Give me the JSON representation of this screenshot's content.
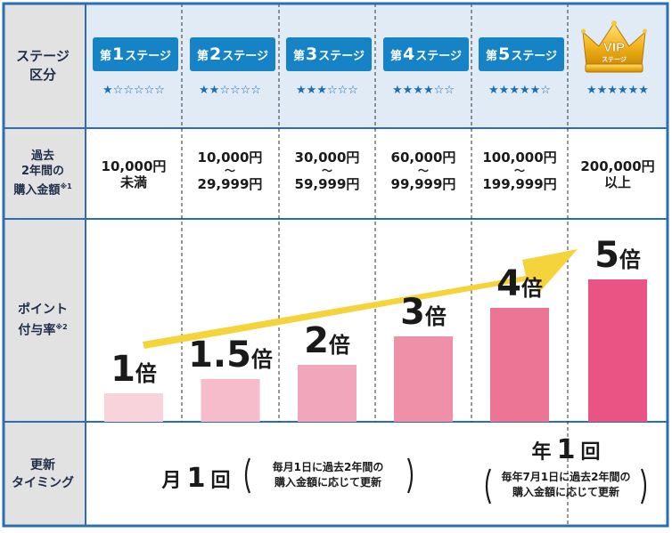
{
  "row_labels": {
    "stage": [
      "ステージ",
      "区分"
    ],
    "amount": [
      "過去",
      "2年間の",
      "購入金額"
    ],
    "amount_note": "※1",
    "points": [
      "ポイント",
      "付与率"
    ],
    "points_note": "※2",
    "timing": [
      "更新",
      "タイミング"
    ]
  },
  "stages": [
    {
      "prefix": "第",
      "num": "1",
      "suffix": "ステージ",
      "stars": "★☆☆☆☆☆",
      "amount_lines": [
        "10,000円",
        "未満"
      ]
    },
    {
      "prefix": "第",
      "num": "2",
      "suffix": "ステージ",
      "stars": "★★☆☆☆☆",
      "amount_lines": [
        "10,000円",
        "～",
        "29,999円"
      ]
    },
    {
      "prefix": "第",
      "num": "3",
      "suffix": "ステージ",
      "stars": "★★★☆☆☆",
      "amount_lines": [
        "30,000円",
        "～",
        "59,999円"
      ]
    },
    {
      "prefix": "第",
      "num": "4",
      "suffix": "ステージ",
      "stars": "★★★★☆☆",
      "amount_lines": [
        "60,000円",
        "～",
        "99,999円"
      ]
    },
    {
      "prefix": "第",
      "num": "5",
      "suffix": "ステージ",
      "stars": "★★★★★☆",
      "amount_lines": [
        "100,000円",
        "～",
        "199,999円"
      ]
    },
    {
      "vip_text": "VIP",
      "vip_sub": "ステージ",
      "stars": "★★★★★★",
      "amount_lines": [
        "200,000円",
        "以上"
      ]
    }
  ],
  "timing": {
    "monthly_main": "月",
    "monthly_num": "1",
    "monthly_unit": "回",
    "monthly_note": [
      "毎月1日に過去2年間の",
      "購入金額に応じて更新"
    ],
    "yearly_main": "年",
    "yearly_num": "1",
    "yearly_unit": "回",
    "yearly_note": [
      "毎年7月1日に過去2年間の",
      "購入金額に応じて更新"
    ]
  },
  "colors": {
    "header_bg": "#e1ebf6",
    "label_bg": "#e2e2e2",
    "border": "#2a6fb3",
    "badge": "#1583c5",
    "arrow": "#f5d33a",
    "bars": [
      "#f9d3dc",
      "#f6bccb",
      "#f2a6bb",
      "#ef8fa8",
      "#ec7596",
      "#e95484"
    ]
  },
  "chart_data": {
    "type": "bar",
    "categories": [
      "第1ステージ",
      "第2ステージ",
      "第3ステージ",
      "第4ステージ",
      "第5ステージ",
      "VIPステージ"
    ],
    "values": [
      1,
      1.5,
      2,
      3,
      4,
      5
    ],
    "labels": [
      {
        "num": "1",
        "suffix": "倍"
      },
      {
        "num": "1.5",
        "suffix": "倍"
      },
      {
        "num": "2",
        "suffix": "倍"
      },
      {
        "num": "3",
        "suffix": "倍"
      },
      {
        "num": "4",
        "suffix": "倍"
      },
      {
        "num": "5",
        "suffix": "倍"
      }
    ],
    "ylim": [
      0,
      5
    ],
    "grid": false,
    "trend_arrow": true
  }
}
